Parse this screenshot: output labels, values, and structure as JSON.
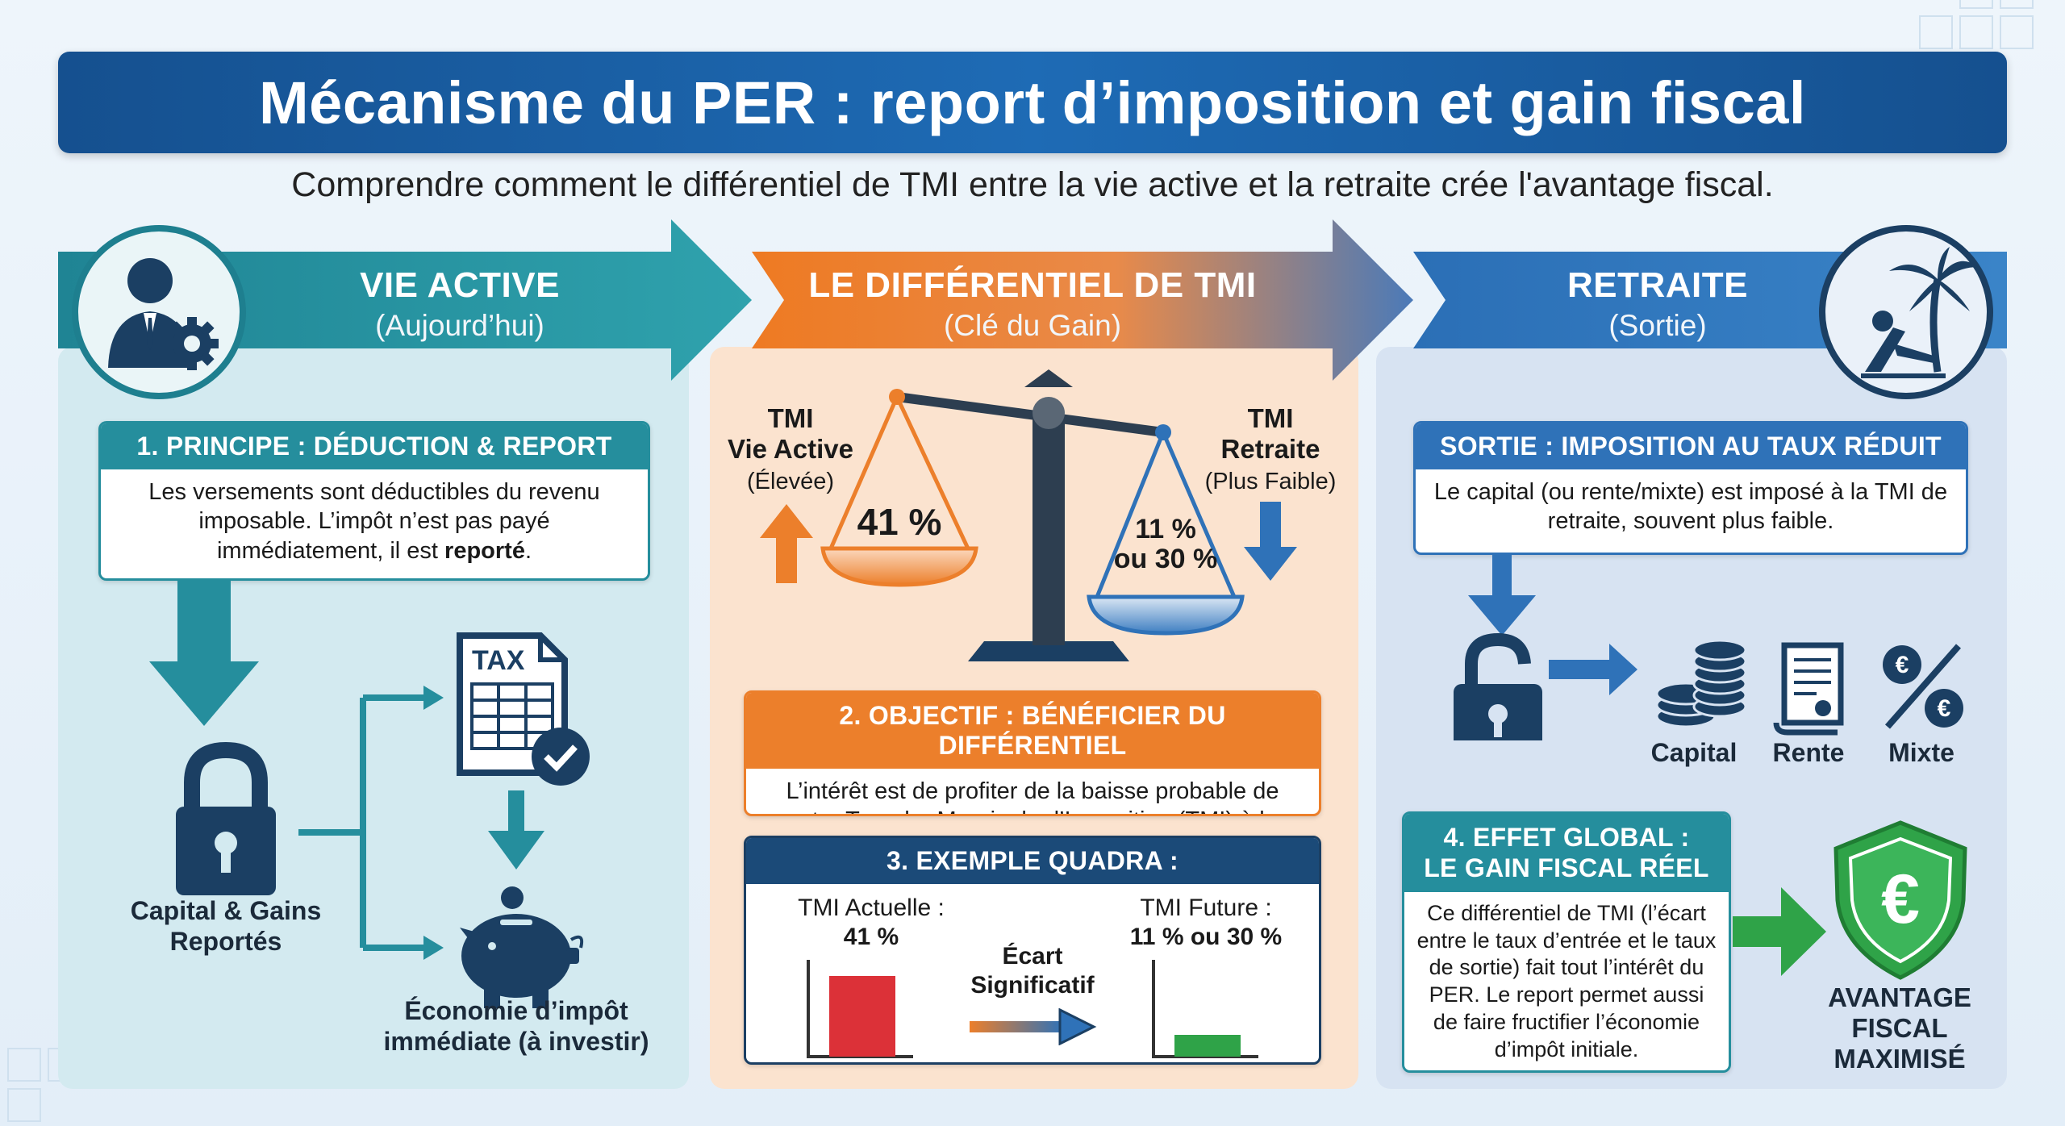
{
  "title": "Mécanisme du PER : report d’imposition et gain fiscal",
  "subtitle": "Comprendre comment le différentiel de TMI entre la vie active et la retraite crée l'avantage fiscal.",
  "colors": {
    "teal": "#258e9d",
    "orange": "#ec7f2b",
    "blue": "#2f72b8",
    "navy": "#15508f",
    "green": "#2fa348",
    "red": "#dc3138"
  },
  "sections": {
    "active": {
      "title": "VIE ACTIVE",
      "sub": "(Aujourd’hui)",
      "icon": "businessman-gear-icon"
    },
    "diff": {
      "title": "LE DIFFÉRENTIEL DE TMI",
      "sub": "(Clé du Gain)"
    },
    "retraite": {
      "title": "RETRAITE",
      "sub": "(Sortie)",
      "icon": "palm-beach-chair-icon"
    }
  },
  "principe": {
    "title": "1. PRINCIPE : DÉDUCTION & REPORT",
    "text_before": "Les versements sont déductibles du revenu imposable. L’impôt n’est pas payé immédiatement, il est ",
    "text_bold": "reporté",
    "text_after": "."
  },
  "left_flow": {
    "capital_label": "Capital & Gains Reportés",
    "economie_label": "Économie d’impôt immédiate (à investir)",
    "tax_doc": "TAX"
  },
  "scale": {
    "left_title": "TMI",
    "left_sub1": "Vie Active",
    "left_sub2": "(Élevée)",
    "left_value": "41 %",
    "right_title": "TMI",
    "right_sub1": "Retraite",
    "right_sub2": "(Plus Faible)",
    "right_value_1": "11 %",
    "right_value_2": "ou 30 %"
  },
  "objectif": {
    "title": "2. OBJECTIF : BÉNÉFICIER DU DIFFÉRENTIEL",
    "text": "L’intérêt est de profiter de la baisse probable de votre Tranche Marginale d’Imposition (TMI) à la retraite."
  },
  "exemple": {
    "title": "3. EXEMPLE QUADRA :",
    "left_label": "TMI Actuelle :",
    "left_value": "41 %",
    "middle_label_1": "Écart",
    "middle_label_2": "Significatif",
    "right_label": "TMI Future :",
    "right_value": "11 % ou 30 %"
  },
  "chart_data": {
    "type": "bar",
    "categories": [
      "TMI Actuelle",
      "TMI Future"
    ],
    "values": [
      41,
      11
    ],
    "ylim": [
      0,
      45
    ]
  },
  "sortie": {
    "title": "SORTIE : IMPOSITION AU TAUX RÉDUIT",
    "text": "Le capital (ou rente/mixte) est imposé à la TMI de retraite, souvent plus faible.",
    "options": [
      "Capital",
      "Rente",
      "Mixte"
    ]
  },
  "effet": {
    "title_1": "4. EFFET GLOBAL :",
    "title_2": "LE GAIN FISCAL RÉEL",
    "text": "Ce différentiel de TMI (l’écart entre le taux d’entrée et le taux de sortie) fait tout l’intérêt du PER. Le report permet aussi de faire fructifier l’économie d’impôt initiale.",
    "result_1": "AVANTAGE",
    "result_2": "FISCAL",
    "result_3": "MAXIMISÉ",
    "shield_symbol": "€"
  }
}
